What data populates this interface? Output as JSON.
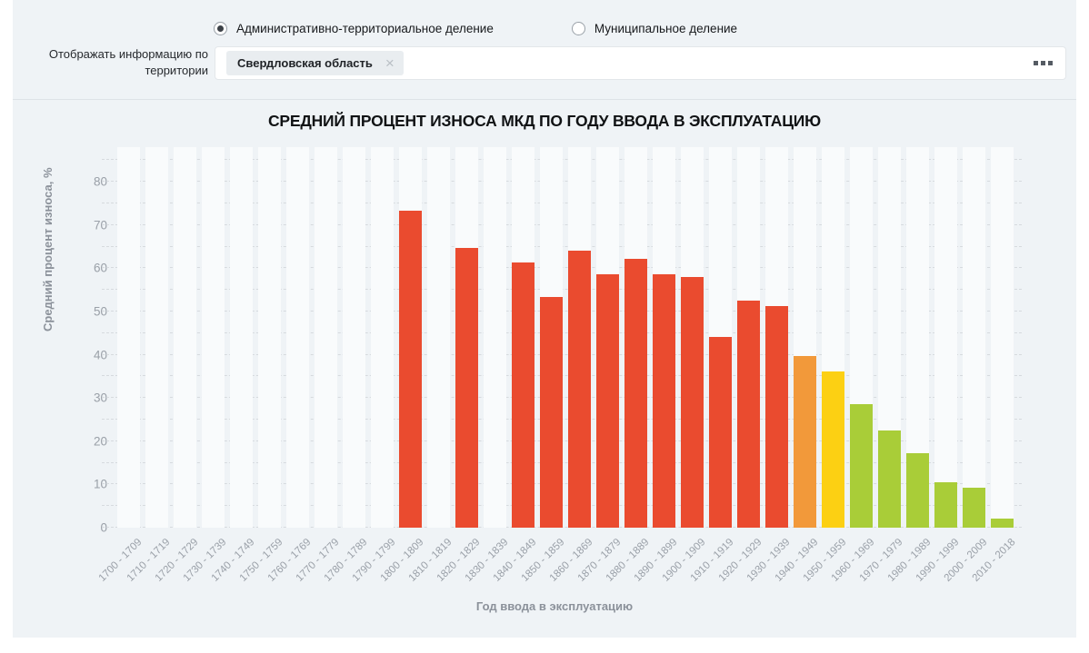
{
  "filter_panel": {
    "radio_options": [
      {
        "label": "Административно-территориальное деление",
        "selected": true
      },
      {
        "label": "Муниципальное деление",
        "selected": false
      }
    ],
    "territory_label": "Отображать информацию по территории",
    "territory_chip": {
      "text": "Свердловская область",
      "remove_icon": "×"
    }
  },
  "chart_data": {
    "type": "bar",
    "title": "СРЕДНИЙ ПРОЦЕНТ ИЗНОСА МКД ПО ГОДУ ВВОДА В ЭКСПЛУАТАЦИЮ",
    "xlabel": "Год ввода в эксплуатацию",
    "ylabel": "Средний процент износа, %",
    "ylim": [
      0,
      88
    ],
    "yticks": [
      0,
      10,
      20,
      30,
      40,
      50,
      60,
      70,
      80
    ],
    "grid": "horizontal dashed every 5 units",
    "legend": "none",
    "categories": [
      "1700 - 1709",
      "1710 - 1719",
      "1720 - 1729",
      "1730 - 1739",
      "1740 - 1749",
      "1750 - 1759",
      "1760 - 1769",
      "1770 - 1779",
      "1780 - 1789",
      "1790 - 1799",
      "1800 - 1809",
      "1810 - 1819",
      "1820 - 1829",
      "1830 - 1839",
      "1840 - 1849",
      "1850 - 1859",
      "1860 - 1869",
      "1870 - 1879",
      "1880 - 1889",
      "1890 - 1899",
      "1900 - 1909",
      "1910 - 1919",
      "1920 - 1929",
      "1930 - 1939",
      "1940 - 1949",
      "1950 - 1959",
      "1960 - 1969",
      "1970 - 1979",
      "1980 - 1989",
      "1990 - 1999",
      "2000 - 2009",
      "2010 - 2018"
    ],
    "values": [
      null,
      null,
      null,
      null,
      null,
      null,
      null,
      null,
      null,
      null,
      73.2,
      null,
      64.6,
      null,
      61.4,
      53.3,
      64.1,
      58.5,
      62.1,
      58.6,
      57.9,
      44.2,
      52.6,
      51.2,
      39.6,
      36.2,
      28.6,
      22.4,
      17.3,
      10.6,
      9.2,
      2.1
    ],
    "color_keys": [
      null,
      null,
      null,
      null,
      null,
      null,
      null,
      null,
      null,
      null,
      "red",
      null,
      "red",
      null,
      "red",
      "red",
      "red",
      "red",
      "red",
      "red",
      "red",
      "red",
      "red",
      "red",
      "orange",
      "yellow",
      "green",
      "green",
      "green",
      "green",
      "green",
      "green"
    ],
    "palette": {
      "red": "#ea4b2f",
      "orange": "#f2993a",
      "yellow": "#fcd013",
      "green": "#a9cd38"
    }
  },
  "colors": {
    "panel_background": "#eff3f6",
    "plot_band": "#f9fbfc",
    "gridline": "#d6dade",
    "tick_text": "#9aa0a8",
    "axis_title_text": "#8b919a",
    "chart_title_text": "#111315"
  }
}
